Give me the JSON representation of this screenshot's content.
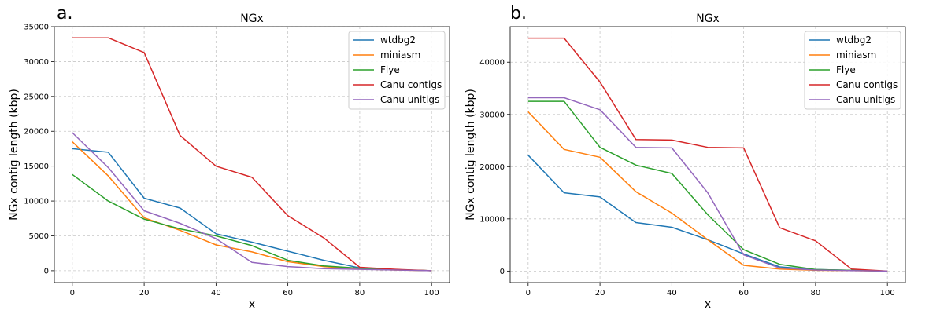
{
  "chart_data": [
    {
      "type": "line",
      "panel_label": "a.",
      "title": "NGx",
      "xlabel": "x",
      "ylabel": "NGx contig length (kbp)",
      "xlim": [
        -5,
        105
      ],
      "ylim": [
        -1700,
        35000
      ],
      "xticks": [
        0,
        20,
        40,
        60,
        80,
        100
      ],
      "yticks": [
        0,
        5000,
        10000,
        15000,
        20000,
        25000,
        30000,
        35000
      ],
      "grid": true,
      "legend": "top-right",
      "x": [
        0,
        10,
        20,
        30,
        40,
        50,
        60,
        70,
        80,
        90,
        100
      ],
      "series": [
        {
          "name": "wtdbg2",
          "color": "#1f77b4",
          "values": [
            17500,
            17000,
            10400,
            9000,
            5300,
            4100,
            2800,
            1500,
            400,
            150,
            0
          ]
        },
        {
          "name": "miniasm",
          "color": "#ff7f0e",
          "values": [
            18500,
            13600,
            7600,
            5800,
            3700,
            2700,
            1300,
            600,
            250,
            100,
            0
          ]
        },
        {
          "name": "Flye",
          "color": "#2ca02c",
          "values": [
            13800,
            10000,
            7400,
            6000,
            5000,
            3600,
            1500,
            700,
            350,
            150,
            0
          ]
        },
        {
          "name": "Canu contigs",
          "color": "#d62728",
          "values": [
            33400,
            33400,
            31300,
            19400,
            15000,
            13400,
            7900,
            4700,
            500,
            200,
            0
          ]
        },
        {
          "name": "Canu unitigs",
          "color": "#9467bd",
          "values": [
            19800,
            14800,
            8600,
            6800,
            4600,
            1200,
            600,
            300,
            200,
            100,
            0
          ]
        }
      ]
    },
    {
      "type": "line",
      "panel_label": "b.",
      "title": "NGx",
      "xlabel": "x",
      "ylabel": "NGx contig length (kbp)",
      "xlim": [
        -5,
        105
      ],
      "ylim": [
        -2200,
        46800
      ],
      "xticks": [
        0,
        20,
        40,
        60,
        80,
        100
      ],
      "yticks": [
        0,
        10000,
        20000,
        30000,
        40000
      ],
      "grid": true,
      "legend": "top-right",
      "x": [
        0,
        10,
        20,
        30,
        40,
        50,
        60,
        70,
        80,
        90,
        100
      ],
      "series": [
        {
          "name": "wtdbg2",
          "color": "#1f77b4",
          "values": [
            22200,
            15000,
            14200,
            9300,
            8400,
            6000,
            3300,
            800,
            300,
            150,
            0
          ]
        },
        {
          "name": "miniasm",
          "color": "#ff7f0e",
          "values": [
            30500,
            23300,
            21800,
            15200,
            11100,
            6000,
            1100,
            400,
            150,
            100,
            0
          ]
        },
        {
          "name": "Flye",
          "color": "#2ca02c",
          "values": [
            32500,
            32500,
            23700,
            20300,
            18700,
            10800,
            4100,
            1300,
            300,
            150,
            0
          ]
        },
        {
          "name": "Canu contigs",
          "color": "#d62728",
          "values": [
            44600,
            44600,
            36200,
            25200,
            25100,
            23700,
            23600,
            8300,
            5800,
            400,
            0
          ]
        },
        {
          "name": "Canu unitigs",
          "color": "#9467bd",
          "values": [
            33200,
            33200,
            30900,
            23700,
            23600,
            15000,
            3100,
            600,
            200,
            100,
            0
          ]
        }
      ]
    }
  ]
}
